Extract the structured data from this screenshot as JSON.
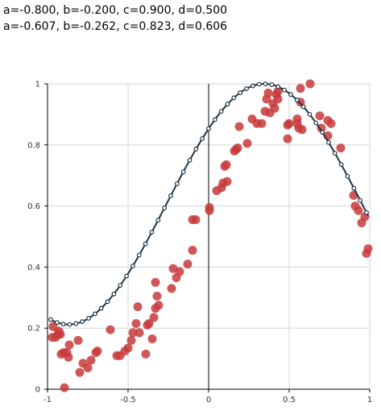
{
  "header": {
    "line1": "a=-0.800, b=-0.200, c=0.900, d=0.500",
    "line2": "a=-0.607, b=-0.262, c=0.823, d=0.606"
  },
  "colors": {
    "points": "#c8393b",
    "fit_line": "#1f3342",
    "fit_markers_fill": "#ffffff",
    "grid": "#d6d6d6",
    "axis": "#000000"
  },
  "chart_data": {
    "type": "scatter",
    "title": "",
    "xlabel": "",
    "ylabel": "",
    "xlim": [
      -1,
      1
    ],
    "ylim": [
      0,
      1
    ],
    "x_ticks": [
      -1,
      -0.5,
      0,
      0.5,
      1
    ],
    "x_tick_labels": [
      "-1",
      "-0.5",
      "0",
      "0.5",
      "1"
    ],
    "y_ticks": [
      0,
      0.2,
      0.4,
      0.6,
      0.8,
      1
    ],
    "y_tick_labels": [
      "0",
      "0.2",
      "0.4",
      "0.6",
      "0.8",
      "1"
    ],
    "grid": true,
    "series": [
      {
        "type": "scatter",
        "color": "#c8393b",
        "points": [
          [
            -0.97,
            0.17
          ],
          [
            -0.965,
            0.205
          ],
          [
            -0.95,
            0.17
          ],
          [
            -0.935,
            0.18
          ],
          [
            -0.93,
            0.19
          ],
          [
            -0.92,
            0.18
          ],
          [
            -0.915,
            0.115
          ],
          [
            -0.9,
            0.12
          ],
          [
            -0.895,
            0.005
          ],
          [
            -0.88,
            0.12
          ],
          [
            -0.865,
            0.145
          ],
          [
            -0.87,
            0.105
          ],
          [
            -0.81,
            0.16
          ],
          [
            -0.8,
            0.055
          ],
          [
            -0.78,
            0.085
          ],
          [
            -0.75,
            0.07
          ],
          [
            -0.73,
            0.095
          ],
          [
            -0.7,
            0.12
          ],
          [
            -0.69,
            0.125
          ],
          [
            -0.61,
            0.195
          ],
          [
            -0.57,
            0.11
          ],
          [
            -0.55,
            0.11
          ],
          [
            -0.52,
            0.125
          ],
          [
            -0.5,
            0.135
          ],
          [
            -0.48,
            0.16
          ],
          [
            -0.47,
            0.185
          ],
          [
            -0.45,
            0.215
          ],
          [
            -0.44,
            0.27
          ],
          [
            -0.43,
            0.185
          ],
          [
            -0.39,
            0.115
          ],
          [
            -0.38,
            0.21
          ],
          [
            -0.37,
            0.215
          ],
          [
            -0.35,
            0.165
          ],
          [
            -0.34,
            0.235
          ],
          [
            -0.33,
            0.265
          ],
          [
            -0.33,
            0.35
          ],
          [
            -0.32,
            0.305
          ],
          [
            -0.31,
            0.275
          ],
          [
            -0.23,
            0.33
          ],
          [
            -0.22,
            0.395
          ],
          [
            -0.2,
            0.365
          ],
          [
            -0.18,
            0.385
          ],
          [
            -0.13,
            0.41
          ],
          [
            -0.1,
            0.455
          ],
          [
            -0.1,
            0.555
          ],
          [
            -0.08,
            0.555
          ],
          [
            0.005,
            0.595
          ],
          [
            0.005,
            0.585
          ],
          [
            0.05,
            0.65
          ],
          [
            0.08,
            0.66
          ],
          [
            0.09,
            0.675
          ],
          [
            0.1,
            0.73
          ],
          [
            0.11,
            0.735
          ],
          [
            0.115,
            0.68
          ],
          [
            0.16,
            0.78
          ],
          [
            0.17,
            0.785
          ],
          [
            0.18,
            0.79
          ],
          [
            0.19,
            0.86
          ],
          [
            0.24,
            0.805
          ],
          [
            0.27,
            0.885
          ],
          [
            0.3,
            0.87
          ],
          [
            0.33,
            0.87
          ],
          [
            0.35,
            0.91
          ],
          [
            0.36,
            0.95
          ],
          [
            0.37,
            0.97
          ],
          [
            0.38,
            0.905
          ],
          [
            0.4,
            0.935
          ],
          [
            0.41,
            0.92
          ],
          [
            0.42,
            0.965
          ],
          [
            0.43,
            0.975
          ],
          [
            0.43,
            0.95
          ],
          [
            0.49,
            0.82
          ],
          [
            0.49,
            0.865
          ],
          [
            0.5,
            0.87
          ],
          [
            0.55,
            0.87
          ],
          [
            0.55,
            0.885
          ],
          [
            0.56,
            0.855
          ],
          [
            0.57,
            0.94
          ],
          [
            0.57,
            0.985
          ],
          [
            0.58,
            0.85
          ],
          [
            0.63,
            1.0
          ],
          [
            0.69,
            0.895
          ],
          [
            0.7,
            0.855
          ],
          [
            0.74,
            0.88
          ],
          [
            0.74,
            0.83
          ],
          [
            0.76,
            0.87
          ],
          [
            0.82,
            0.79
          ],
          [
            0.9,
            0.635
          ],
          [
            0.91,
            0.6
          ],
          [
            0.93,
            0.585
          ],
          [
            0.95,
            0.545
          ],
          [
            0.97,
            0.565
          ],
          [
            0.98,
            0.445
          ],
          [
            0.99,
            0.46
          ]
        ]
      },
      {
        "type": "line",
        "name": "",
        "color": "#1f3342",
        "function": "a*sin(pi*x/... ) fitted curve",
        "params": {
          "a": -0.607,
          "b": -0.262,
          "c": 0.823,
          "d": 0.606
        },
        "points": [
          [
            -0.98,
            0.118
          ],
          [
            -0.94,
            0.104
          ],
          [
            -0.9,
            0.096
          ],
          [
            -0.86,
            0.093
          ],
          [
            -0.82,
            0.097
          ],
          [
            -0.78,
            0.106
          ],
          [
            -0.74,
            0.121
          ],
          [
            -0.7,
            0.142
          ],
          [
            -0.66,
            0.168
          ],
          [
            -0.62,
            0.2
          ],
          [
            -0.58,
            0.236
          ],
          [
            -0.54,
            0.276
          ],
          [
            -0.5,
            0.32
          ],
          [
            -0.46,
            0.366
          ],
          [
            -0.42,
            0.414
          ],
          [
            -0.38,
            0.463
          ],
          [
            -0.34,
            0.511
          ],
          [
            -0.3,
            0.558
          ],
          [
            -0.26,
            0.604
          ],
          [
            -0.22,
            0.646
          ],
          [
            -0.18,
            0.686
          ],
          [
            -0.14,
            0.721
          ],
          [
            -0.1,
            0.752
          ],
          [
            -0.06,
            0.778
          ],
          [
            -0.02,
            0.799
          ],
          [
            0.02,
            0.815
          ],
          [
            0.06,
            0.826
          ],
          [
            0.1,
            0.832
          ],
          [
            0.14,
            0.832
          ],
          [
            0.18,
            0.827
          ]
        ]
      }
    ]
  }
}
